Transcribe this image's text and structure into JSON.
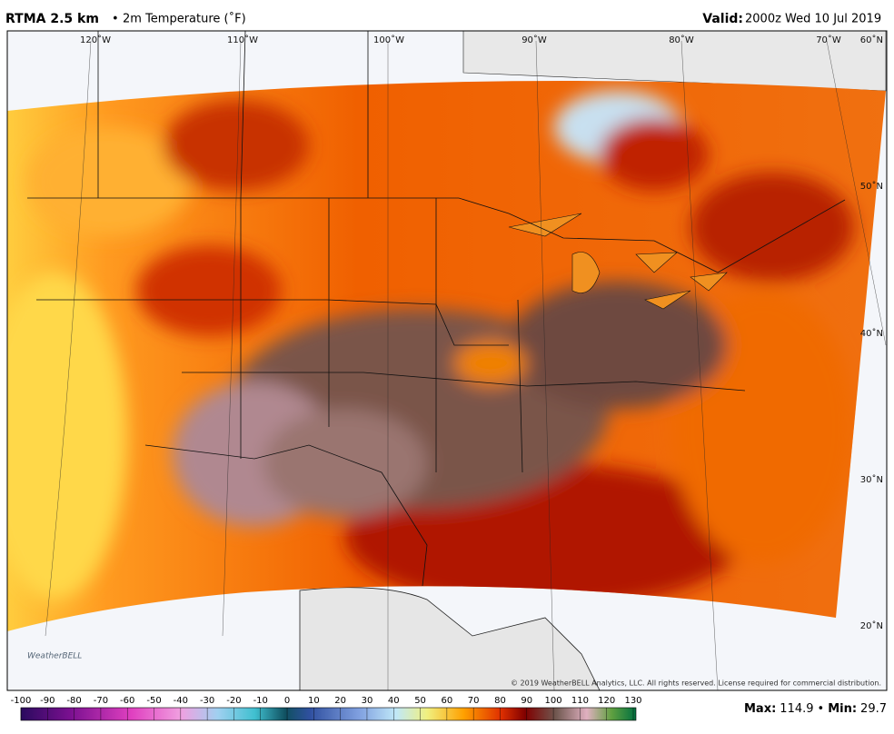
{
  "header": {
    "model": "RTMA 2.5 km",
    "separator": "•",
    "variable": "2m Temperature (˚F)",
    "valid_label": "Valid:",
    "valid_time": "2000z Wed 10 Jul 2019"
  },
  "map": {
    "longitudes": [
      "120˚W",
      "110˚W",
      "100˚W",
      "90˚W",
      "80˚W",
      "70˚W"
    ],
    "latitudes": [
      "60˚N",
      "50˚N",
      "40˚N",
      "30˚N",
      "20˚N"
    ],
    "logo": "WeatherBELL",
    "copyright": "© 2019 WeatherBELL Analytics, LLC. All rights reserved. License required for commercial distribution."
  },
  "colorbar": {
    "ticks": [
      -100,
      -90,
      -80,
      -70,
      -60,
      -50,
      -40,
      -30,
      -20,
      -10,
      0,
      10,
      20,
      30,
      40,
      50,
      60,
      70,
      80,
      90,
      100,
      110,
      120,
      130
    ]
  },
  "stats": {
    "separator": "•",
    "items": [
      {
        "label": "Max:",
        "value": 114.9
      },
      {
        "label": "Min:",
        "value": 29.7
      }
    ]
  }
}
